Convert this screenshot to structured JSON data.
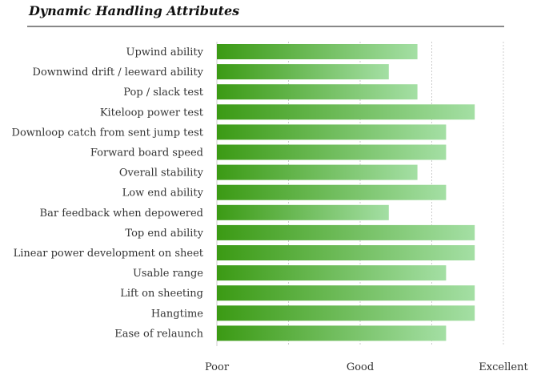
{
  "title": "Dynamic Handling Attributes",
  "chart_data": {
    "type": "bar",
    "orientation": "horizontal",
    "categories": [
      "Upwind ability",
      "Downwind drift / leeward ability",
      "Pop / slack test",
      "Kiteloop power test",
      "Downloop catch from sent jump test",
      "Forward board speed",
      "Overall stability",
      "Low end ability",
      "Bar feedback when depowered",
      "Top end ability",
      "Linear power development on sheet",
      "Usable range",
      "Lift on sheeting",
      "Hangtime",
      "Ease of relaunch"
    ],
    "values": [
      7,
      6,
      7,
      9,
      8,
      8,
      7,
      8,
      6,
      9,
      9,
      8,
      9,
      9,
      8
    ],
    "xlim": [
      0,
      10
    ],
    "ticks": [
      {
        "value": 0,
        "label": "Poor"
      },
      {
        "value": 5,
        "label": "Good"
      },
      {
        "value": 10,
        "label": "Excellent"
      }
    ],
    "gridlines": [
      0,
      2.5,
      5,
      7.5,
      10
    ],
    "grid": true,
    "colors": {
      "bar_start": "#3b9a14",
      "bar_end": "#a4dfa4",
      "grid": "#cccccc"
    }
  }
}
